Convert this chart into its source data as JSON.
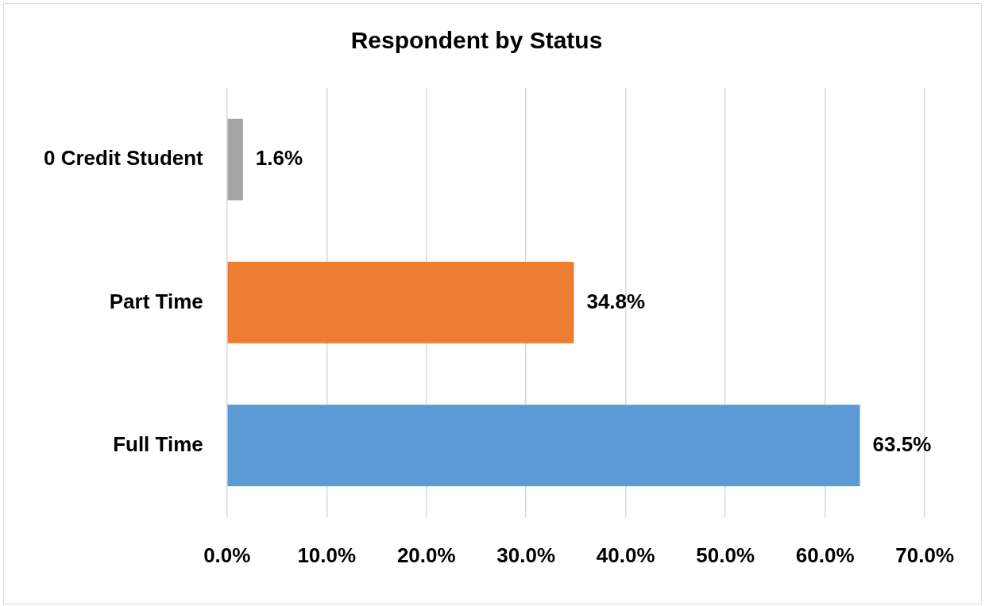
{
  "chart_data": {
    "type": "bar",
    "orientation": "horizontal",
    "title": "Respondent by Status",
    "categories": [
      "0 Credit Student",
      "Part Time",
      "Full Time"
    ],
    "values": [
      1.6,
      34.8,
      63.5
    ],
    "colors": [
      "#a5a5a5",
      "#ed7d31",
      "#5b9bd5"
    ],
    "value_labels": [
      "1.6%",
      "34.8%",
      "63.5%"
    ],
    "xlim": [
      0,
      70
    ],
    "xticks": [
      {
        "value": 0,
        "label": "0.0%"
      },
      {
        "value": 10,
        "label": "10.0%"
      },
      {
        "value": 20,
        "label": "20.0%"
      },
      {
        "value": 30,
        "label": "30.0%"
      },
      {
        "value": 40,
        "label": "40.0%"
      },
      {
        "value": 50,
        "label": "50.0%"
      },
      {
        "value": 60,
        "label": "60.0%"
      },
      {
        "value": 70,
        "label": "70.0%"
      }
    ],
    "grid": "x",
    "legend": false
  }
}
